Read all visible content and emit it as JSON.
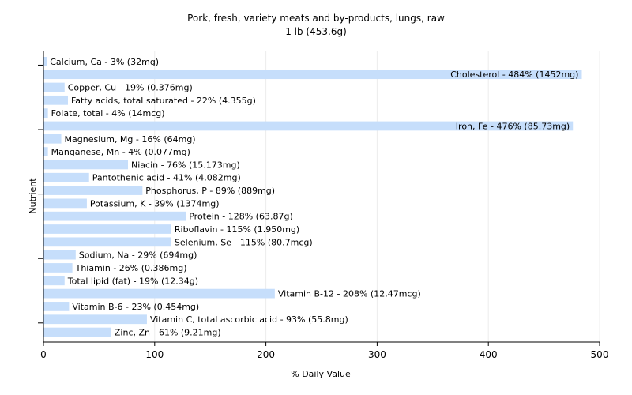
{
  "chart_data": {
    "type": "bar",
    "orientation": "horizontal",
    "title": "Pork, fresh, variety meats and by-products, lungs, raw",
    "subtitle": "1 lb (453.6g)",
    "xlabel": "% Daily Value",
    "ylabel": "Nutrient",
    "xlim": [
      0,
      500
    ],
    "xticks": [
      0,
      100,
      200,
      300,
      400,
      500
    ],
    "grid": true,
    "bar_color": "#c6defb",
    "categories": [
      "Calcium, Ca - 3% (32mg)",
      "Cholesterol - 484% (1452mg)",
      "Copper, Cu - 19% (0.376mg)",
      "Fatty acids, total saturated - 22% (4.355g)",
      "Folate, total - 4% (14mcg)",
      "Iron, Fe - 476% (85.73mg)",
      "Magnesium, Mg - 16% (64mg)",
      "Manganese, Mn - 4% (0.077mg)",
      "Niacin - 76% (15.173mg)",
      "Pantothenic acid - 41% (4.082mg)",
      "Phosphorus, P - 89% (889mg)",
      "Potassium, K - 39% (1374mg)",
      "Protein - 128% (63.87g)",
      "Riboflavin - 115% (1.950mg)",
      "Selenium, Se - 115% (80.7mcg)",
      "Sodium, Na - 29% (694mg)",
      "Thiamin - 26% (0.386mg)",
      "Total lipid (fat) - 19% (12.34g)",
      "Vitamin B-12 - 208% (12.47mcg)",
      "Vitamin B-6 - 23% (0.454mg)",
      "Vitamin C, total ascorbic acid - 93% (55.8mg)",
      "Zinc, Zn - 61% (9.21mg)"
    ],
    "values": [
      3,
      484,
      19,
      22,
      4,
      476,
      16,
      4,
      76,
      41,
      89,
      39,
      128,
      115,
      115,
      29,
      26,
      19,
      208,
      23,
      93,
      61
    ]
  }
}
